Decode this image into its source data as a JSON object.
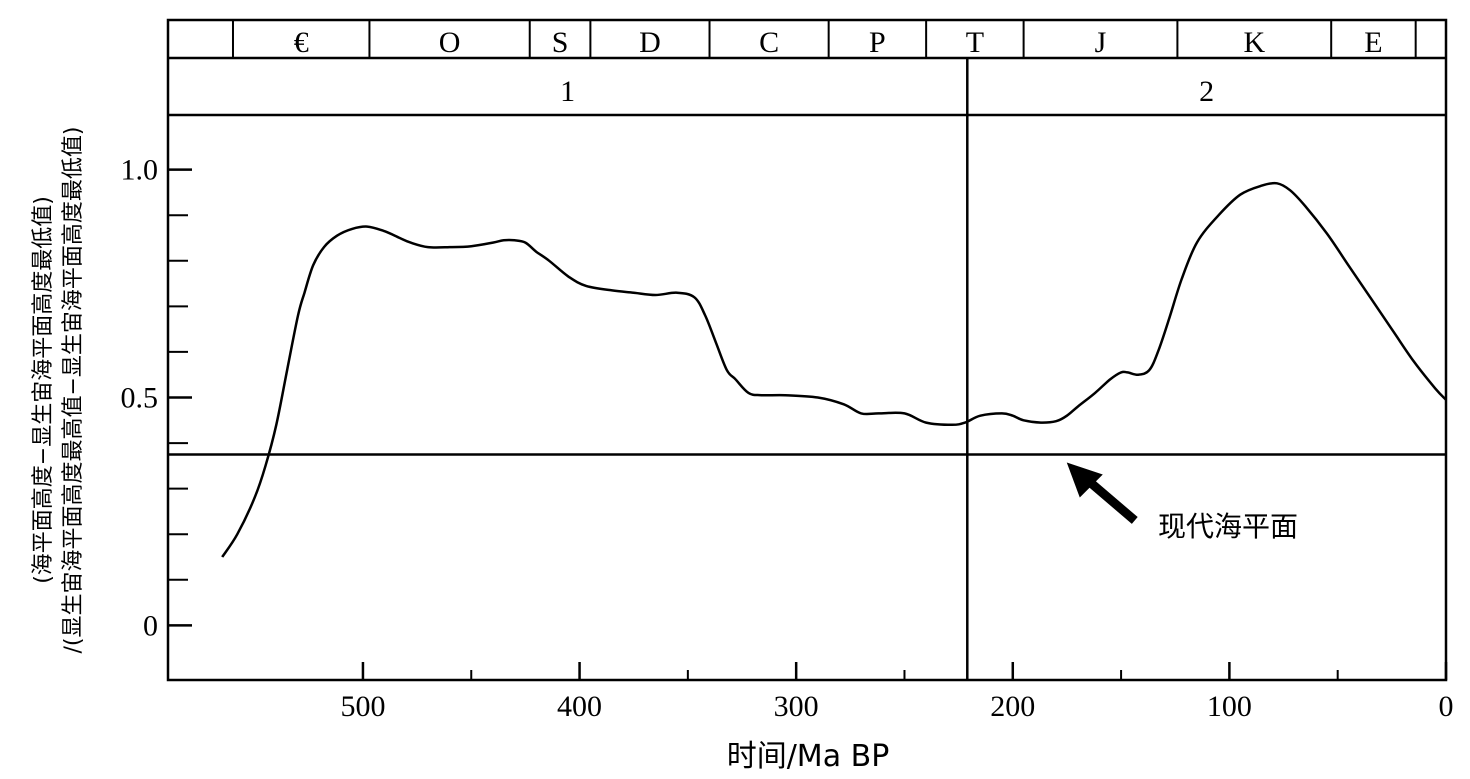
{
  "chart_data": {
    "type": "line",
    "xlabel": "时间/Ma BP",
    "ylabel_lines": [
      "(海平面高度−显生宙海平面高度最低值)",
      "/(显生宙海平面高度最高值−显生宙海平面高度最低值)"
    ],
    "xlim": [
      590,
      0
    ],
    "ylim": [
      -0.12,
      1.12
    ],
    "x_ticks": [
      500,
      400,
      300,
      200,
      100,
      0
    ],
    "x_tick_labels": [
      "500",
      "400",
      "300",
      "200",
      "100",
      "0"
    ],
    "x_minor_ticks": [
      450,
      350,
      250,
      150,
      50
    ],
    "y_ticks": [
      0,
      0.5,
      1.0
    ],
    "y_tick_labels": [
      "0",
      "0.5",
      "1.0"
    ],
    "y_minor_ticks": [
      0.1,
      0.2,
      0.3,
      0.4,
      0.6,
      0.7,
      0.8,
      0.9
    ],
    "periods": [
      {
        "label": "",
        "start": 590,
        "end": 560
      },
      {
        "label": "€",
        "start": 560,
        "end": 497
      },
      {
        "label": "O",
        "start": 497,
        "end": 423
      },
      {
        "label": "S",
        "start": 423,
        "end": 395
      },
      {
        "label": "D",
        "start": 395,
        "end": 340
      },
      {
        "label": "C",
        "start": 340,
        "end": 285
      },
      {
        "label": "P",
        "start": 285,
        "end": 240
      },
      {
        "label": "T",
        "start": 240,
        "end": 195
      },
      {
        "label": "J",
        "start": 195,
        "end": 124
      },
      {
        "label": "K",
        "start": 124,
        "end": 53
      },
      {
        "label": "E",
        "start": 53,
        "end": 14
      },
      {
        "label": "",
        "start": 14,
        "end": 0
      }
    ],
    "cycles": [
      {
        "label": "1",
        "start": 590,
        "end": 221
      },
      {
        "label": "2",
        "start": 221,
        "end": 0
      }
    ],
    "divider_x": 221,
    "present_sea_level": {
      "y": 0.375,
      "label": "现代海平面",
      "arrow_to_x": 176
    },
    "series": [
      {
        "x": [
          565,
          558,
          550,
          545,
          540,
          535,
          530,
          527,
          523,
          518,
          512,
          505,
          498,
          490,
          483,
          478,
          470,
          460,
          450,
          440,
          435,
          430,
          425,
          420,
          414,
          405,
          397,
          385,
          375,
          365,
          355,
          347,
          342,
          337,
          332,
          328,
          322,
          316,
          305,
          290,
          278,
          270,
          262,
          250,
          240,
          228,
          222,
          215,
          205,
          200,
          195,
          187,
          180,
          175,
          170,
          162,
          155,
          150,
          147,
          142,
          137,
          133,
          128,
          122,
          115,
          105,
          95,
          85,
          78,
          72,
          65,
          55,
          45,
          35,
          25,
          15,
          5,
          0
        ],
        "y": [
          0.15,
          0.2,
          0.28,
          0.35,
          0.44,
          0.56,
          0.68,
          0.73,
          0.79,
          0.83,
          0.855,
          0.87,
          0.875,
          0.865,
          0.85,
          0.84,
          0.83,
          0.83,
          0.832,
          0.84,
          0.845,
          0.845,
          0.84,
          0.82,
          0.8,
          0.765,
          0.745,
          0.735,
          0.73,
          0.725,
          0.73,
          0.72,
          0.68,
          0.62,
          0.56,
          0.54,
          0.51,
          0.505,
          0.505,
          0.5,
          0.485,
          0.465,
          0.465,
          0.465,
          0.445,
          0.44,
          0.445,
          0.46,
          0.465,
          0.46,
          0.45,
          0.445,
          0.448,
          0.46,
          0.48,
          0.51,
          0.54,
          0.555,
          0.555,
          0.55,
          0.56,
          0.6,
          0.67,
          0.76,
          0.84,
          0.9,
          0.945,
          0.965,
          0.97,
          0.955,
          0.92,
          0.86,
          0.79,
          0.72,
          0.65,
          0.58,
          0.52,
          0.495
        ]
      }
    ]
  }
}
